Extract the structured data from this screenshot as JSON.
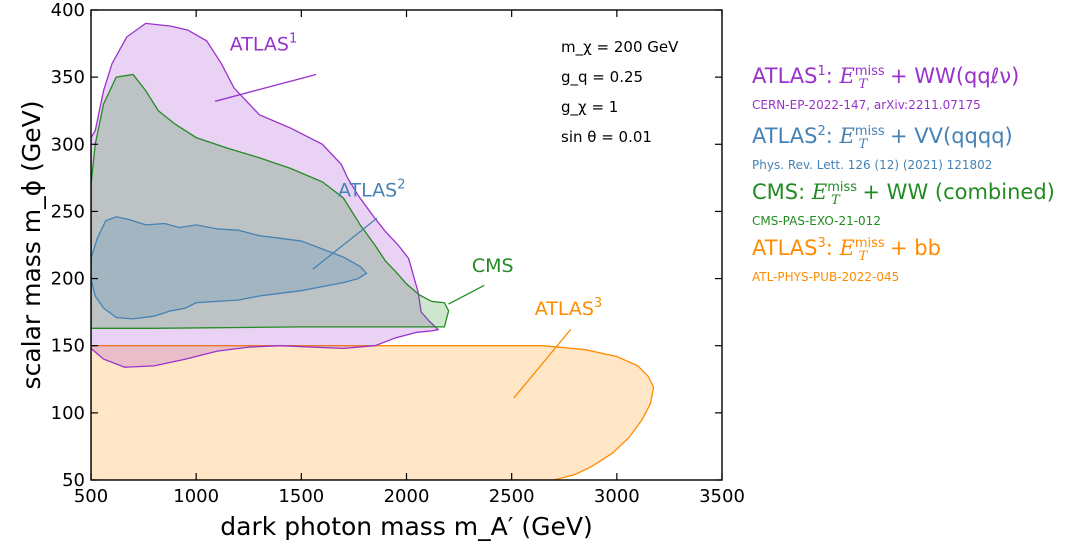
{
  "chart_data": {
    "type": "area",
    "xlabel": "dark photon mass m_A′ (GeV)",
    "ylabel": "scalar mass m_ϕ (GeV)",
    "xlim": [
      500,
      3500
    ],
    "ylim": [
      50,
      400
    ],
    "xticks": [
      "500",
      "1000",
      "1500",
      "2000",
      "2500",
      "3000",
      "3500"
    ],
    "yticks": [
      "50",
      "100",
      "150",
      "200",
      "250",
      "300",
      "350",
      "400"
    ],
    "grid": false,
    "legend_position": "right-outside",
    "parameters": [
      "m_χ = 200 GeV",
      "g_q = 0.25",
      "g_χ = 1",
      "sin θ = 0.01"
    ],
    "series": [
      {
        "name": "ATLAS1",
        "color": "#9932cc",
        "in_plot_label": "ATLAS",
        "in_plot_sup": "1",
        "label_at": [
          1320,
          370
        ],
        "pointer": [
          [
            1570,
            352
          ],
          [
            1090,
            332
          ]
        ],
        "points": [
          [
            500,
            148
          ],
          [
            560,
            140
          ],
          [
            660,
            134
          ],
          [
            800,
            135
          ],
          [
            950,
            140
          ],
          [
            1100,
            146
          ],
          [
            1250,
            149
          ],
          [
            1400,
            150
          ],
          [
            1550,
            149
          ],
          [
            1700,
            148
          ],
          [
            1850,
            150
          ],
          [
            1950,
            156
          ],
          [
            2050,
            160
          ],
          [
            2120,
            161
          ],
          [
            2150,
            162
          ],
          [
            2110,
            168
          ],
          [
            2070,
            175
          ],
          [
            2055,
            190
          ],
          [
            2010,
            215
          ],
          [
            1960,
            225
          ],
          [
            1900,
            235
          ],
          [
            1840,
            247
          ],
          [
            1770,
            262
          ],
          [
            1720,
            275
          ],
          [
            1690,
            285
          ],
          [
            1600,
            300
          ],
          [
            1450,
            312
          ],
          [
            1300,
            322
          ],
          [
            1180,
            342
          ],
          [
            1120,
            360
          ],
          [
            1050,
            377
          ],
          [
            960,
            385
          ],
          [
            880,
            388
          ],
          [
            760,
            390
          ],
          [
            670,
            380
          ],
          [
            600,
            360
          ],
          [
            560,
            340
          ],
          [
            520,
            310
          ],
          [
            500,
            305
          ]
        ]
      },
      {
        "name": "ATLAS2",
        "color": "#4682b4",
        "in_plot_label": "ATLAS",
        "in_plot_sup": "2",
        "label_at": [
          1835,
          261
        ],
        "pointer": [
          [
            1860,
            245
          ],
          [
            1555,
            207
          ]
        ],
        "points": [
          [
            500,
            215
          ],
          [
            530,
            230
          ],
          [
            570,
            243
          ],
          [
            620,
            246
          ],
          [
            680,
            244
          ],
          [
            760,
            240
          ],
          [
            850,
            241
          ],
          [
            920,
            238
          ],
          [
            1000,
            240
          ],
          [
            1100,
            237
          ],
          [
            1200,
            236
          ],
          [
            1300,
            232
          ],
          [
            1400,
            230
          ],
          [
            1500,
            228
          ],
          [
            1600,
            222
          ],
          [
            1700,
            216
          ],
          [
            1780,
            209
          ],
          [
            1810,
            204
          ],
          [
            1770,
            200
          ],
          [
            1700,
            197
          ],
          [
            1600,
            194
          ],
          [
            1500,
            191
          ],
          [
            1400,
            189
          ],
          [
            1300,
            187
          ],
          [
            1200,
            184
          ],
          [
            1100,
            183
          ],
          [
            1000,
            182
          ],
          [
            950,
            178
          ],
          [
            880,
            176
          ],
          [
            800,
            172
          ],
          [
            700,
            170
          ],
          [
            620,
            171
          ],
          [
            560,
            178
          ],
          [
            520,
            187
          ],
          [
            500,
            200
          ]
        ]
      },
      {
        "name": "CMS",
        "color": "#228b22",
        "in_plot_label": "CMS",
        "in_plot_sup": "",
        "label_at": [
          2410,
          205
        ],
        "pointer": [
          [
            2370,
            195
          ],
          [
            2200,
            181
          ]
        ],
        "points": [
          [
            500,
            270
          ],
          [
            520,
            300
          ],
          [
            560,
            330
          ],
          [
            620,
            350
          ],
          [
            700,
            352
          ],
          [
            760,
            340
          ],
          [
            820,
            325
          ],
          [
            900,
            315
          ],
          [
            1000,
            305
          ],
          [
            1150,
            297
          ],
          [
            1300,
            290
          ],
          [
            1450,
            282
          ],
          [
            1600,
            272
          ],
          [
            1700,
            260
          ],
          [
            1780,
            240
          ],
          [
            1850,
            225
          ],
          [
            1900,
            213
          ],
          [
            1950,
            205
          ],
          [
            2000,
            196
          ],
          [
            2060,
            188
          ],
          [
            2120,
            183
          ],
          [
            2180,
            182
          ],
          [
            2200,
            176
          ],
          [
            2180,
            164
          ],
          [
            1500,
            164
          ],
          [
            800,
            163
          ],
          [
            500,
            163
          ]
        ]
      },
      {
        "name": "ATLAS3",
        "color": "#ff8c00",
        "in_plot_label": "ATLAS",
        "in_plot_sup": "3",
        "label_at": [
          2770,
          173
        ],
        "pointer": [
          [
            2780,
            162
          ],
          [
            2510,
            111
          ]
        ],
        "points": [
          [
            500,
            150
          ],
          [
            2650,
            150
          ],
          [
            2850,
            147
          ],
          [
            3000,
            142
          ],
          [
            3100,
            135
          ],
          [
            3150,
            127
          ],
          [
            3175,
            119
          ],
          [
            3160,
            107
          ],
          [
            3120,
            95
          ],
          [
            3060,
            82
          ],
          [
            2980,
            70
          ],
          [
            2880,
            60
          ],
          [
            2800,
            54
          ],
          [
            2700,
            50
          ],
          [
            500,
            50
          ]
        ]
      }
    ]
  },
  "legend": [
    {
      "name": "ATLAS",
      "sup": "1",
      "process": "+ WW(qqℓν)",
      "ref": "CERN-EP-2022-147, arXiv:2211.07175",
      "color": "#9932cc",
      "top": 60
    },
    {
      "name": "ATLAS",
      "sup": "2",
      "process": "+ VV(qqqq)",
      "ref": "Phys. Rev. Lett. 126 (12) (2021) 121802",
      "color": "#4682b4",
      "top": 120
    },
    {
      "name": "CMS",
      "sup": "",
      "process": "+ WW (combined)",
      "ref": "CMS-PAS-EXO-21-012",
      "color": "#228b22",
      "top": 176
    },
    {
      "name": "ATLAS",
      "sup": "3",
      "process": "+ bb",
      "ref": "ATL-PHYS-PUB-2022-045",
      "color": "#ff8c00",
      "top": 232
    }
  ],
  "met_symbol": "E",
  "met_sup": "miss",
  "met_sub": "T"
}
